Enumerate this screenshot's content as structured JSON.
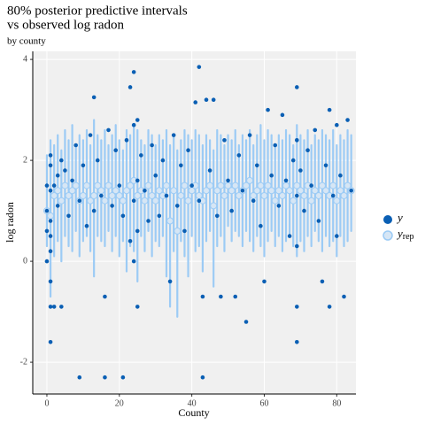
{
  "chart_data": {
    "type": "intervals",
    "title": [
      "80% posterior predictive intervals",
      "vs observed log radon"
    ],
    "subtitle": "by county",
    "x_label": "County",
    "y_label": "log radon",
    "xlim": [
      -3.9,
      85.3
    ],
    "ylim": [
      -2.63,
      4.16
    ],
    "xticks": [
      0,
      20,
      40,
      60,
      80
    ],
    "yticks": [
      -2,
      0,
      2,
      4
    ],
    "grid": true,
    "legend": "right",
    "series": [
      {
        "name": "y",
        "color": "#0a5fb4",
        "x": [
          0,
          0,
          0,
          0,
          1,
          1,
          1,
          1,
          1,
          1,
          1,
          1,
          1,
          2,
          2,
          3,
          3,
          4,
          4,
          5,
          6,
          7,
          8,
          9,
          9,
          10,
          11,
          12,
          13,
          13,
          14,
          15,
          16,
          16,
          17,
          18,
          19,
          20,
          21,
          21,
          22,
          23,
          23,
          24,
          24,
          24,
          24,
          25,
          25,
          25,
          25,
          26,
          27,
          28,
          29,
          30,
          31,
          32,
          33,
          34,
          35,
          36,
          37,
          38,
          39,
          40,
          41,
          42,
          42,
          43,
          43,
          44,
          45,
          46,
          47,
          48,
          49,
          50,
          51,
          52,
          53,
          54,
          55,
          56,
          57,
          58,
          59,
          60,
          61,
          62,
          63,
          64,
          65,
          66,
          67,
          68,
          69,
          69,
          69,
          69,
          69,
          69,
          70,
          71,
          72,
          73,
          74,
          75,
          76,
          77,
          78,
          78,
          79,
          80,
          80,
          81,
          82,
          83,
          84
        ],
        "values": [
          1.0,
          0.0,
          0.6,
          1.5,
          1.9,
          1.4,
          0.8,
          0.2,
          -0.4,
          -0.9,
          -1.6,
          2.1,
          0.5,
          1.5,
          -0.9,
          1.1,
          1.7,
          -0.9,
          2.0,
          1.8,
          0.9,
          1.6,
          2.3,
          -2.3,
          1.2,
          1.9,
          0.7,
          2.5,
          3.25,
          1.0,
          2.0,
          1.3,
          -2.3,
          -0.7,
          2.6,
          1.1,
          2.2,
          1.5,
          -2.3,
          0.9,
          2.4,
          3.45,
          0.4,
          3.75,
          2.7,
          1.2,
          0.0,
          -0.9,
          2.8,
          1.6,
          0.6,
          2.1,
          1.4,
          0.8,
          2.3,
          1.7,
          0.9,
          2.0,
          1.3,
          -0.4,
          2.5,
          1.1,
          1.9,
          0.6,
          2.2,
          1.5,
          3.15,
          3.85,
          1.2,
          -2.3,
          -0.7,
          3.2,
          1.8,
          3.2,
          0.9,
          -0.7,
          2.4,
          1.6,
          1.0,
          -0.7,
          2.1,
          1.4,
          -1.2,
          2.5,
          1.2,
          1.9,
          0.7,
          -0.4,
          3.0,
          1.7,
          2.3,
          1.1,
          2.9,
          1.6,
          0.5,
          2.0,
          3.45,
          2.4,
          1.3,
          0.3,
          -0.9,
          -1.6,
          1.8,
          1.0,
          2.2,
          1.5,
          2.6,
          0.8,
          -0.4,
          1.9,
          3.0,
          -0.9,
          1.3,
          2.7,
          0.5,
          1.7,
          -0.7,
          2.8,
          1.4
        ]
      },
      {
        "name": "y",
        "subscript": "rep",
        "color": "#9ccbf5",
        "fill": "#d6e6f5",
        "x": [
          0,
          1,
          2,
          3,
          4,
          5,
          6,
          7,
          8,
          9,
          10,
          11,
          12,
          13,
          14,
          15,
          16,
          17,
          18,
          19,
          20,
          21,
          22,
          23,
          24,
          25,
          26,
          27,
          28,
          29,
          30,
          31,
          32,
          33,
          34,
          35,
          36,
          37,
          38,
          39,
          40,
          41,
          42,
          43,
          44,
          45,
          46,
          47,
          48,
          49,
          50,
          51,
          52,
          53,
          54,
          55,
          56,
          57,
          58,
          59,
          60,
          61,
          62,
          63,
          64,
          65,
          66,
          67,
          68,
          69,
          70,
          71,
          72,
          73,
          74,
          75,
          76,
          77,
          78,
          79,
          80,
          81,
          82,
          83,
          84
        ],
        "values": [
          1.0,
          0.9,
          1.3,
          1.4,
          1.2,
          1.5,
          1.3,
          1.4,
          1.5,
          1.2,
          1.3,
          1.5,
          1.2,
          1.3,
          1.5,
          1.4,
          1.2,
          1.5,
          1.3,
          1.4,
          1.3,
          1.2,
          1.4,
          1.5,
          1.6,
          1.3,
          1.4,
          1.2,
          1.5,
          1.3,
          1.2,
          1.4,
          1.3,
          1.5,
          0.8,
          1.4,
          0.6,
          1.3,
          1.5,
          1.2,
          1.4,
          1.5,
          1.3,
          1.2,
          1.4,
          1.5,
          1.1,
          1.4,
          1.5,
          1.3,
          1.5,
          1.4,
          1.5,
          1.3,
          1.4,
          1.5,
          1.6,
          1.3,
          1.4,
          1.5,
          1.3,
          1.5,
          1.4,
          1.2,
          1.4,
          1.3,
          1.5,
          1.4,
          1.2,
          1.5,
          1.4,
          1.3,
          1.5,
          1.2,
          1.4,
          1.3,
          1.5,
          1.4,
          1.3,
          1.5,
          1.2,
          1.4,
          1.3,
          1.5,
          1.4
        ],
        "lower": [
          0.3,
          -0.7,
          0.1,
          0.4,
          0.0,
          0.5,
          0.3,
          0.2,
          0.6,
          0.1,
          0.4,
          0.5,
          0.2,
          -0.3,
          0.5,
          0.4,
          0.3,
          0.6,
          0.2,
          0.5,
          0.1,
          0.4,
          -0.2,
          0.3,
          0.2,
          -0.4,
          0.5,
          0.2,
          0.6,
          0.1,
          0.4,
          0.3,
          0.5,
          -0.3,
          -0.9,
          0.2,
          -1.1,
          0.4,
          0.1,
          -0.3,
          0.5,
          0.2,
          0.3,
          -0.2,
          0.4,
          0.6,
          -0.5,
          0.3,
          0.5,
          0.2,
          0.7,
          0.4,
          0.6,
          0.5,
          0.3,
          0.6,
          0.4,
          0.2,
          0.5,
          0.3,
          0.1,
          0.4,
          0.6,
          0.3,
          0.5,
          0.2,
          0.4,
          0.5,
          0.3,
          0.1,
          0.4,
          0.2,
          0.5,
          0.3,
          0.6,
          0.4,
          0.2,
          0.5,
          0.3,
          0.4,
          0.1,
          0.5,
          0.3,
          0.4,
          0.6
        ],
        "upper": [
          2.1,
          2.4,
          2.3,
          2.5,
          2.2,
          2.6,
          2.4,
          2.7,
          2.3,
          2.5,
          2.4,
          2.6,
          2.3,
          2.8,
          2.5,
          2.4,
          2.6,
          2.3,
          2.5,
          2.7,
          2.4,
          2.2,
          2.6,
          2.5,
          2.7,
          2.6,
          2.4,
          2.3,
          2.6,
          2.5,
          2.3,
          2.5,
          2.4,
          2.6,
          2.3,
          2.5,
          2.2,
          2.4,
          2.6,
          2.5,
          2.4,
          2.6,
          2.5,
          2.3,
          2.5,
          2.4,
          2.2,
          2.6,
          2.5,
          2.3,
          2.5,
          2.4,
          2.6,
          2.3,
          2.5,
          2.4,
          2.6,
          2.3,
          2.5,
          2.7,
          2.4,
          2.6,
          2.5,
          2.3,
          2.5,
          2.4,
          2.6,
          2.5,
          2.3,
          2.7,
          2.5,
          2.4,
          2.6,
          2.3,
          2.5,
          2.4,
          2.6,
          2.5,
          2.4,
          2.6,
          2.3,
          2.5,
          2.4,
          2.6,
          2.5
        ]
      }
    ]
  }
}
